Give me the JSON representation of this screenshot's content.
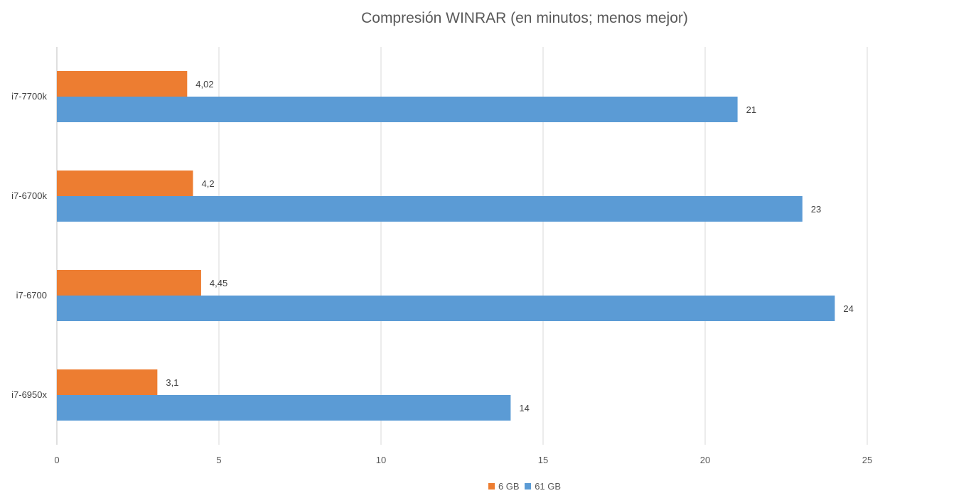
{
  "chart_data": {
    "type": "bar",
    "orientation": "horizontal",
    "title": "Compresión WINRAR (en minutos; menos mejor)",
    "categories": [
      "i7-7700k",
      "i7-6700k",
      "i7-6700",
      "i7-6950x"
    ],
    "series": [
      {
        "name": "6 GB",
        "color": "#ED7D31",
        "values": [
          4.02,
          4.2,
          4.45,
          3.1
        ],
        "labels": [
          "4,02",
          "4,2",
          "4,45",
          "3,1"
        ]
      },
      {
        "name": "61 GB",
        "color": "#5B9BD5",
        "values": [
          21,
          23,
          24,
          14
        ],
        "labels": [
          "21",
          "23",
          "24",
          "14"
        ]
      }
    ],
    "xlim": [
      0,
      25
    ],
    "xticks": [
      0,
      5,
      10,
      15,
      20,
      25
    ],
    "grid": true,
    "legend_position": "bottom"
  }
}
